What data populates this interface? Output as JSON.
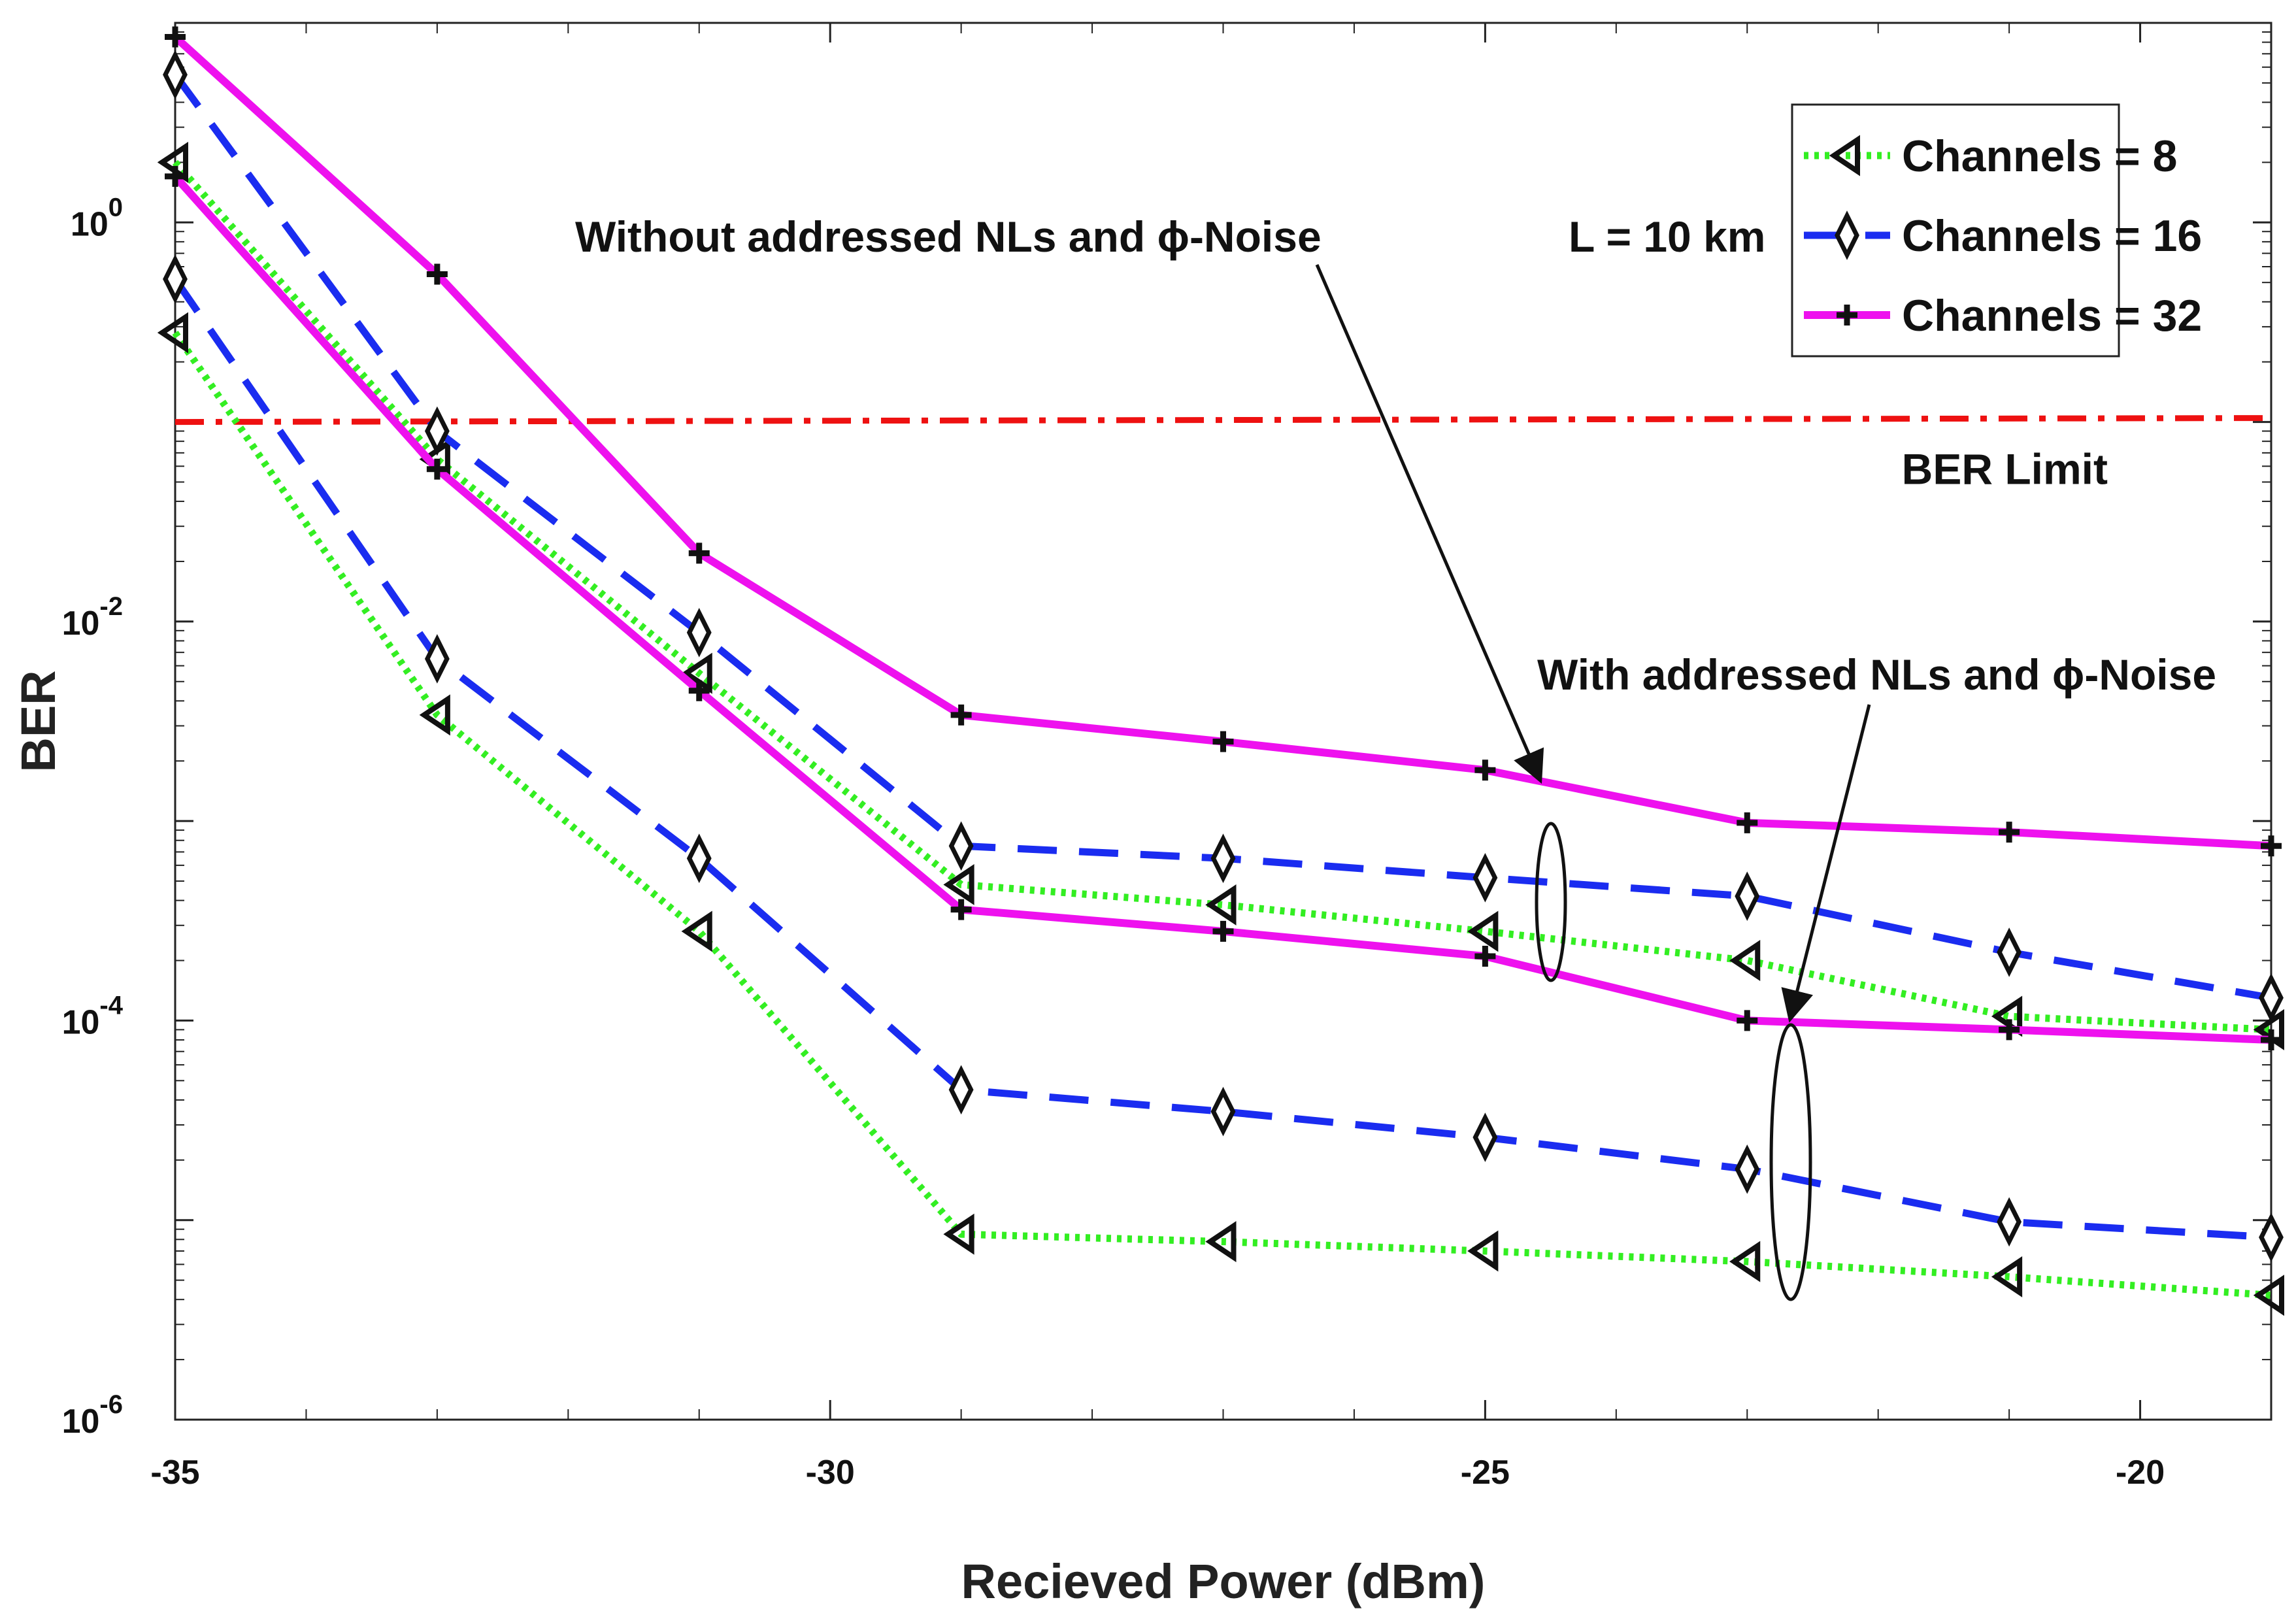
{
  "chart_data": {
    "type": "line",
    "xlabel": "Recieved Power (dBm)",
    "ylabel": "BER",
    "yscale": "log",
    "xlim": [
      -35,
      -19
    ],
    "ylim": [
      1e-06,
      10
    ],
    "x_ticks": [
      -35,
      -30,
      -25,
      -20
    ],
    "x_tick_labels": [
      "-35",
      "-30",
      "-25",
      "-20"
    ],
    "y_ticks": [
      1e-06,
      0.0001,
      0.01,
      1
    ],
    "y_tick_labels": [
      {
        "base": "10",
        "exp": "-6"
      },
      {
        "base": "10",
        "exp": "-4"
      },
      {
        "base": "10",
        "exp": "-2"
      },
      {
        "base": "10",
        "exp": "0"
      }
    ],
    "x": [
      -35,
      -33,
      -31,
      -29,
      -27,
      -25,
      -23,
      -21,
      -19
    ],
    "series": [
      {
        "name": "Channels = 8",
        "group": "without",
        "color": "#33ee22",
        "style": "dotted",
        "marker": "triangle-left",
        "values": [
          2.0,
          0.065,
          0.0055,
          0.00048,
          0.00038,
          0.00028,
          0.0002,
          0.000105,
          9e-05
        ]
      },
      {
        "name": "Channels = 16",
        "group": "without",
        "color": "#1a2cf0",
        "style": "dashed",
        "marker": "diamond",
        "values": [
          5.5,
          0.09,
          0.0088,
          0.00075,
          0.00065,
          0.00052,
          0.00042,
          0.00022,
          0.00013
        ]
      },
      {
        "name": "Channels = 32",
        "group": "without",
        "color": "#ee11ee",
        "style": "solid",
        "marker": "plus",
        "values": [
          8.5,
          0.55,
          0.022,
          0.0034,
          0.0025,
          0.0018,
          0.00098,
          0.00088,
          0.00075
        ]
      },
      {
        "name": "Channels = 8",
        "group": "with",
        "color": "#33ee22",
        "style": "dotted",
        "marker": "triangle-left",
        "values": [
          0.28,
          0.0034,
          0.00028,
          8.5e-06,
          7.8e-06,
          7e-06,
          6.2e-06,
          5.2e-06,
          4.2e-06
        ]
      },
      {
        "name": "Channels = 16",
        "group": "with",
        "color": "#1a2cf0",
        "style": "dashed",
        "marker": "diamond",
        "values": [
          0.52,
          0.0065,
          0.00065,
          4.5e-05,
          3.5e-05,
          2.6e-05,
          1.8e-05,
          9.8e-06,
          8.2e-06
        ]
      },
      {
        "name": "Channels = 32",
        "group": "with",
        "color": "#ee11ee",
        "style": "solid",
        "marker": "plus",
        "values": [
          1.7,
          0.058,
          0.0045,
          0.00036,
          0.00028,
          0.00021,
          0.0001,
          9e-05,
          8e-05
        ]
      }
    ],
    "legend": {
      "position": "top-right",
      "entries": [
        "Channels = 8",
        "Channels = 16",
        "Channels = 32"
      ]
    },
    "reference_line": {
      "label": "BER Limit",
      "value": 0.1,
      "color": "#ee1111",
      "style": "dash-dot"
    },
    "annotations": [
      {
        "text": "L = 10 km"
      },
      {
        "text": "Without addressed NLs and ϕ-Noise"
      },
      {
        "text": "With addressed NLs and ϕ-Noise"
      }
    ]
  }
}
